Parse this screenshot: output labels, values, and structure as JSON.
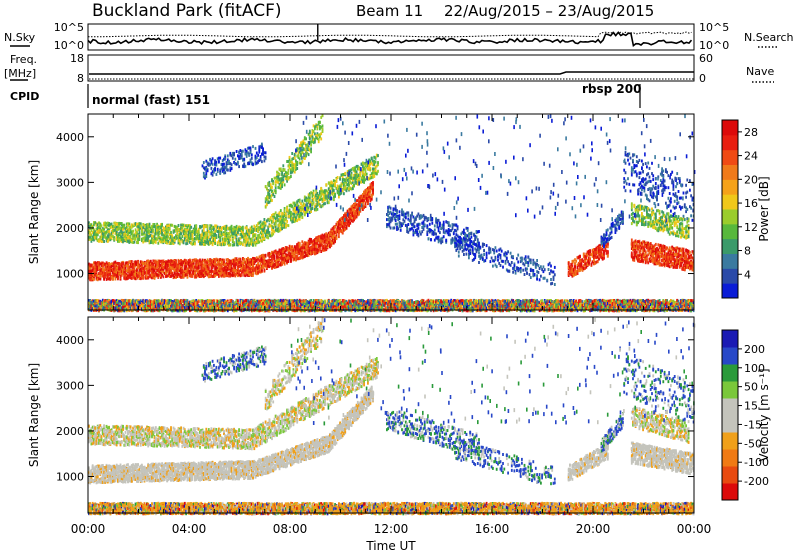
{
  "header": {
    "station": "Buckland Park (fitACF)",
    "beam": "Beam 11",
    "dates": "22/Aug/2015 – 23/Aug/2015"
  },
  "side_labels": {
    "nsky": "N.Sky",
    "nsearch": "N.Search",
    "freq": "Freq.",
    "freq_unit": "[MHz]",
    "nave": "Nave",
    "cpid": "CPID"
  },
  "noise_panel": {
    "left_ticks": [
      "10^5",
      "10^0"
    ],
    "right_ticks": [
      "10^5",
      "10^0"
    ]
  },
  "freq_panel": {
    "left_ticks": [
      "18",
      "8"
    ],
    "right_ticks": [
      "60",
      "0"
    ]
  },
  "cpid_panel": {
    "segments": [
      {
        "label": "normal (fast) 151",
        "start_hour": 0,
        "end_hour": 21.9
      },
      {
        "label": "rbsp 200",
        "start_hour": 21.9,
        "end_hour": 24
      }
    ]
  },
  "x_axis": {
    "label": "Time UT",
    "ticks": [
      "00:00",
      "04:00",
      "08:00",
      "12:00",
      "16:00",
      "20:00",
      "00:00"
    ],
    "range_hours": [
      0,
      24
    ]
  },
  "chart_data": [
    {
      "type": "heatmap",
      "name": "power",
      "ylabel": "Slant Range [km]",
      "yticks": [
        "1000",
        "2000",
        "3000",
        "4000"
      ],
      "ylim": [
        200,
        4500
      ],
      "colorbar_label": "Power [dB]",
      "colorbar_ticks": [
        "4",
        "8",
        "12",
        "16",
        "20",
        "24",
        "28"
      ],
      "colorbar_range": [
        0,
        30
      ],
      "colorbar_colors": [
        "#0a1cd6",
        "#2a4aa8",
        "#3a7aa0",
        "#3a9a6a",
        "#58b83c",
        "#9acc2c",
        "#f0c81a",
        "#f5a21a",
        "#f07a1a",
        "#f04a14",
        "#e81e10",
        "#dc0a0a"
      ]
    },
    {
      "type": "heatmap",
      "name": "velocity",
      "ylabel": "Slant Range [km]",
      "yticks": [
        "1000",
        "2000",
        "3000",
        "4000"
      ],
      "ylim": [
        200,
        4500
      ],
      "colorbar_label": "Velocity [m s⁻¹]",
      "colorbar_ticks": [
        "200",
        "100",
        "50",
        "15",
        "-15",
        "-50",
        "-100",
        "-200"
      ],
      "colorbar_colors": [
        "#1a1ab4",
        "#2848c8",
        "#2a9a3a",
        "#7ac83a",
        "#c4c4bc",
        "#c4c4bc",
        "#f0a01a",
        "#f07a14",
        "#e84a10",
        "#dc0a0a"
      ]
    }
  ]
}
